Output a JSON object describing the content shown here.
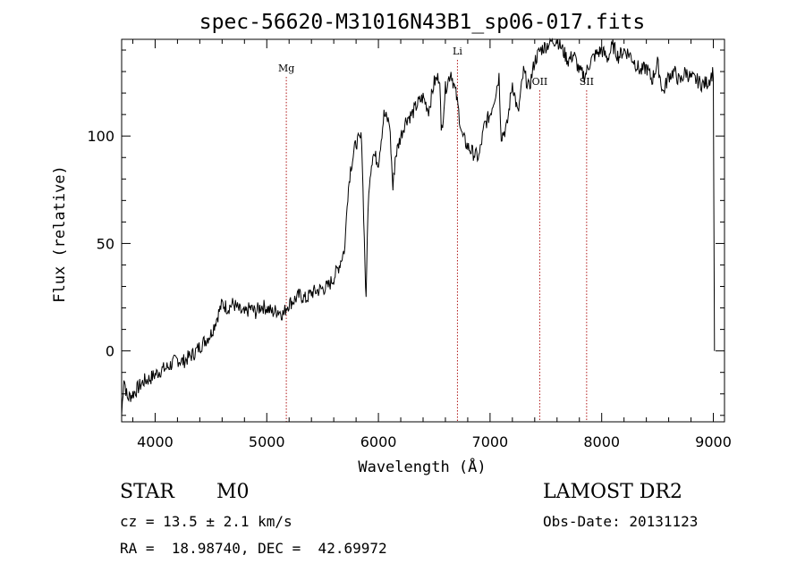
{
  "chart_data": {
    "type": "line",
    "title": "spec-56620-M31016N43B1_sp06-017.fits",
    "xlabel": "Wavelength (Å)",
    "ylabel": "Flux (relative)",
    "xlim": [
      3700,
      9100
    ],
    "ylim": [
      -33,
      145
    ],
    "x_ticks": [
      4000,
      5000,
      6000,
      7000,
      8000,
      9000
    ],
    "y_ticks": [
      0,
      50,
      100
    ],
    "grid": false,
    "series": [
      {
        "x": [
          3700,
          3720,
          3750,
          3800,
          3850,
          3900,
          3950,
          4000,
          4050,
          4100,
          4150,
          4200,
          4250,
          4300,
          4350,
          4400,
          4450,
          4500,
          4550,
          4600,
          4650,
          4700,
          4750,
          4800,
          4850,
          4900,
          4950,
          5000,
          5050,
          5100,
          5150,
          5180,
          5200,
          5250,
          5300,
          5350,
          5400,
          5450,
          5500,
          5550,
          5600,
          5650,
          5700,
          5720,
          5750,
          5780,
          5800,
          5850,
          5880,
          5890,
          5900,
          5920,
          5950,
          6000,
          6050,
          6100,
          6130,
          6150,
          6200,
          6250,
          6300,
          6350,
          6400,
          6450,
          6500,
          6550,
          6563,
          6600,
          6650,
          6700,
          6750,
          6800,
          6850,
          6900,
          6950,
          7000,
          7050,
          7080,
          7100,
          7150,
          7200,
          7250,
          7300,
          7350,
          7400,
          7450,
          7500,
          7550,
          7600,
          7650,
          7700,
          7750,
          7800,
          7850,
          7900,
          7950,
          8000,
          8050,
          8100,
          8150,
          8200,
          8250,
          8300,
          8350,
          8400,
          8450,
          8500,
          8550,
          8600,
          8650,
          8700,
          8750,
          8800,
          8850,
          8900,
          8950,
          9000,
          9010
        ],
        "y": [
          -30,
          -12,
          -22,
          -20,
          -17,
          -14,
          -13,
          -11,
          -9,
          -8,
          -6,
          -4,
          -5,
          -3,
          -1,
          2,
          5,
          8,
          15,
          22,
          20,
          22,
          19,
          17,
          20,
          18,
          21,
          20,
          18,
          19,
          17,
          21,
          22,
          24,
          26,
          24,
          27,
          28,
          29,
          30,
          34,
          40,
          48,
          70,
          85,
          92,
          97,
          99,
          40,
          22,
          55,
          80,
          92,
          88,
          110,
          106,
          75,
          90,
          100,
          108,
          110,
          115,
          118,
          112,
          125,
          128,
          100,
          122,
          130,
          118,
          100,
          95,
          92,
          90,
          105,
          110,
          120,
          128,
          100,
          104,
          125,
          110,
          130,
          122,
          135,
          140,
          142,
          144,
          145,
          140,
          135,
          138,
          130,
          128,
          135,
          138,
          140,
          136,
          142,
          137,
          140,
          138,
          134,
          130,
          132,
          126,
          134,
          120,
          128,
          130,
          125,
          130,
          127,
          126,
          124,
          125,
          130,
          0
        ],
        "color": "#000000"
      }
    ],
    "line_markers": [
      {
        "label": "Mg",
        "x": 5175
      },
      {
        "label": "Li",
        "x": 6708
      },
      {
        "label": "OII",
        "x": 7445
      },
      {
        "label": "SII",
        "x": 7865
      }
    ],
    "marker_color": "#b01818"
  },
  "info": {
    "object_class": "STAR",
    "subclass": "M0",
    "survey": "LAMOST DR2",
    "cz": "cz = 13.5 ± 2.1 km/s",
    "obs_date": "Obs-Date: 20131123",
    "coords": "RA =  18.98740, DEC =  42.69972"
  }
}
